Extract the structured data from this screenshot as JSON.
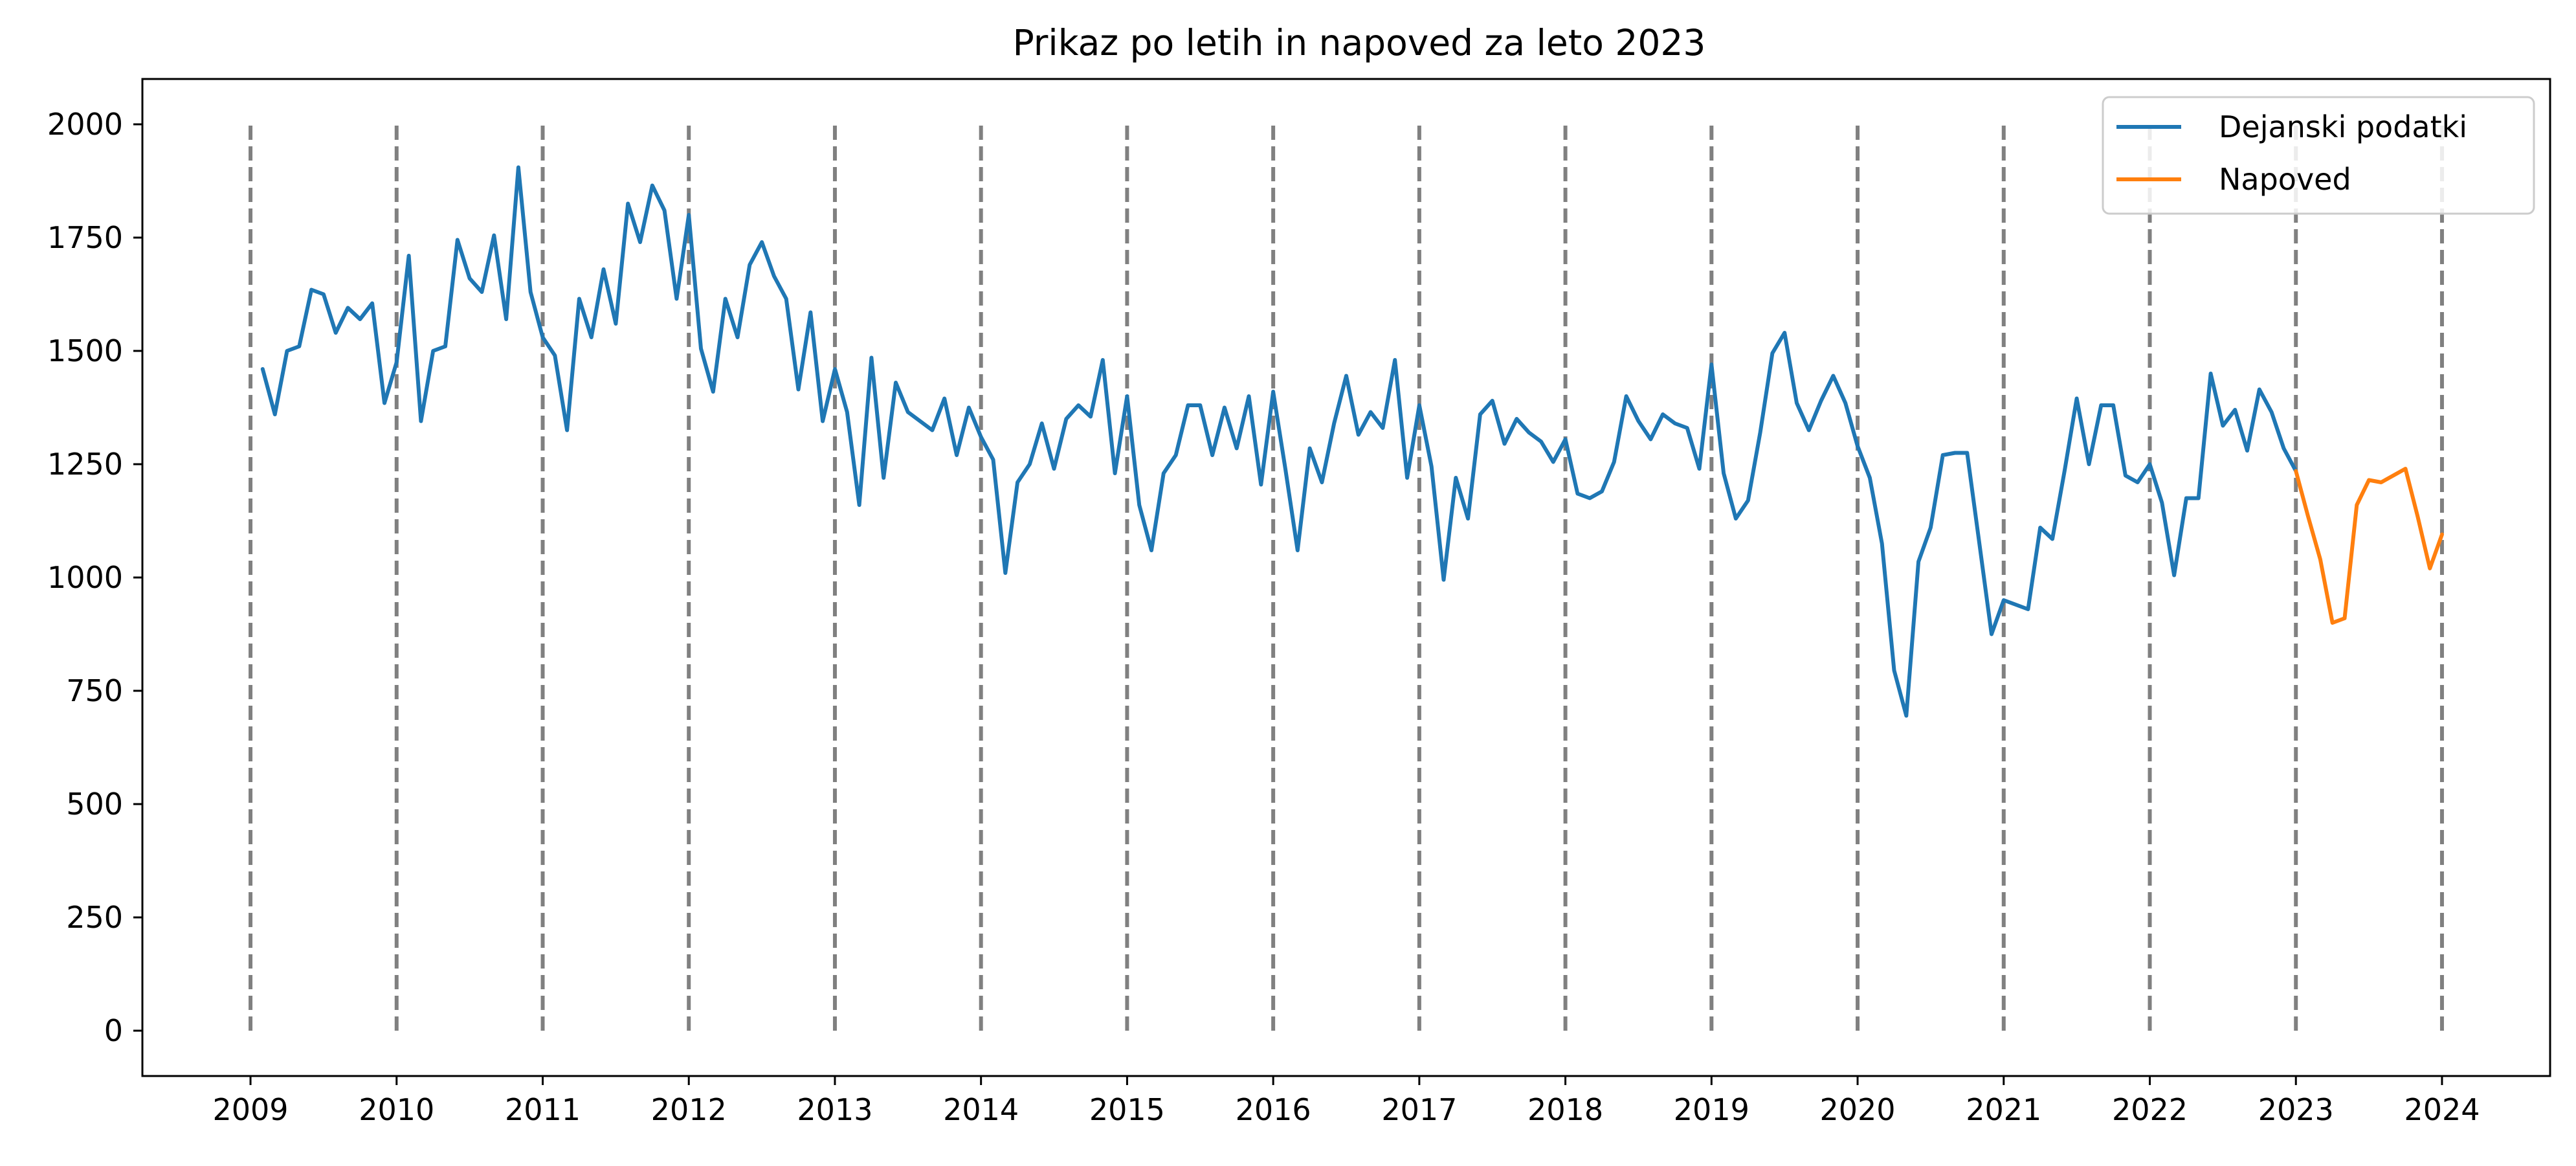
{
  "chart_data": {
    "type": "line",
    "title": "Prikaz po letih in napoved za leto 2023",
    "xlabel": "",
    "ylabel": "",
    "xlim": [
      2008.26,
      2024.74
    ],
    "ylim": [
      -100,
      2100
    ],
    "x_ticks": [
      "2009",
      "2010",
      "2011",
      "2012",
      "2013",
      "2014",
      "2015",
      "2016",
      "2017",
      "2018",
      "2019",
      "2020",
      "2021",
      "2022",
      "2023",
      "2024"
    ],
    "y_ticks": [
      "0",
      "250",
      "500",
      "750",
      "1000",
      "1250",
      "1500",
      "1750",
      "2000"
    ],
    "grid": false,
    "legend_position": "top-right",
    "year_markers": {
      "style": "dashed",
      "color": "#808080",
      "years": [
        2009,
        2010,
        2011,
        2012,
        2013,
        2014,
        2015,
        2016,
        2017,
        2018,
        2019,
        2020,
        2021,
        2022,
        2023,
        2024
      ],
      "y_range": [
        0,
        2000
      ]
    },
    "series": [
      {
        "name": "Dejanski podatki",
        "color": "#1f77b4",
        "start_year": 2009,
        "start_month": 2,
        "frequency": "monthly",
        "values": [
          1460,
          1360,
          1500,
          1510,
          1635,
          1625,
          1540,
          1595,
          1570,
          1605,
          1385,
          1475,
          1710,
          1345,
          1500,
          1510,
          1745,
          1660,
          1630,
          1755,
          1570,
          1905,
          1630,
          1530,
          1490,
          1325,
          1615,
          1530,
          1680,
          1560,
          1825,
          1740,
          1865,
          1810,
          1615,
          1800,
          1505,
          1410,
          1615,
          1530,
          1690,
          1740,
          1665,
          1615,
          1415,
          1585,
          1345,
          1460,
          1365,
          1160,
          1485,
          1220,
          1430,
          1365,
          1345,
          1325,
          1395,
          1270,
          1375,
          1310,
          1260,
          1010,
          1210,
          1250,
          1340,
          1240,
          1350,
          1380,
          1355,
          1480,
          1230,
          1400,
          1160,
          1060,
          1230,
          1270,
          1380,
          1380,
          1270,
          1375,
          1285,
          1400,
          1205,
          1410,
          1240,
          1060,
          1285,
          1210,
          1340,
          1445,
          1315,
          1365,
          1330,
          1480,
          1220,
          1380,
          1245,
          995,
          1220,
          1130,
          1360,
          1390,
          1295,
          1350,
          1320,
          1300,
          1255,
          1305,
          1185,
          1175,
          1190,
          1255,
          1400,
          1345,
          1305,
          1360,
          1340,
          1330,
          1240,
          1470,
          1230,
          1130,
          1170,
          1320,
          1495,
          1540,
          1385,
          1325,
          1390,
          1445,
          1385,
          1290,
          1220,
          1075,
          795,
          695,
          1035,
          1110,
          1270,
          1275,
          1275,
          1075,
          875,
          950,
          940,
          930,
          1110,
          1085,
          1235,
          1395,
          1250,
          1380,
          1380,
          1225,
          1210,
          1250,
          1165,
          1005,
          1175,
          1175,
          1450,
          1335,
          1370,
          1280,
          1415,
          1365,
          1285,
          1235
        ]
      },
      {
        "name": "Napoved",
        "color": "#ff7f0e",
        "start_year": 2023,
        "start_month": 1,
        "frequency": "monthly",
        "values": [
          1235,
          1135,
          1040,
          900,
          910,
          1160,
          1215,
          1210,
          1225,
          1240,
          1135,
          1020,
          1095
        ]
      }
    ]
  }
}
